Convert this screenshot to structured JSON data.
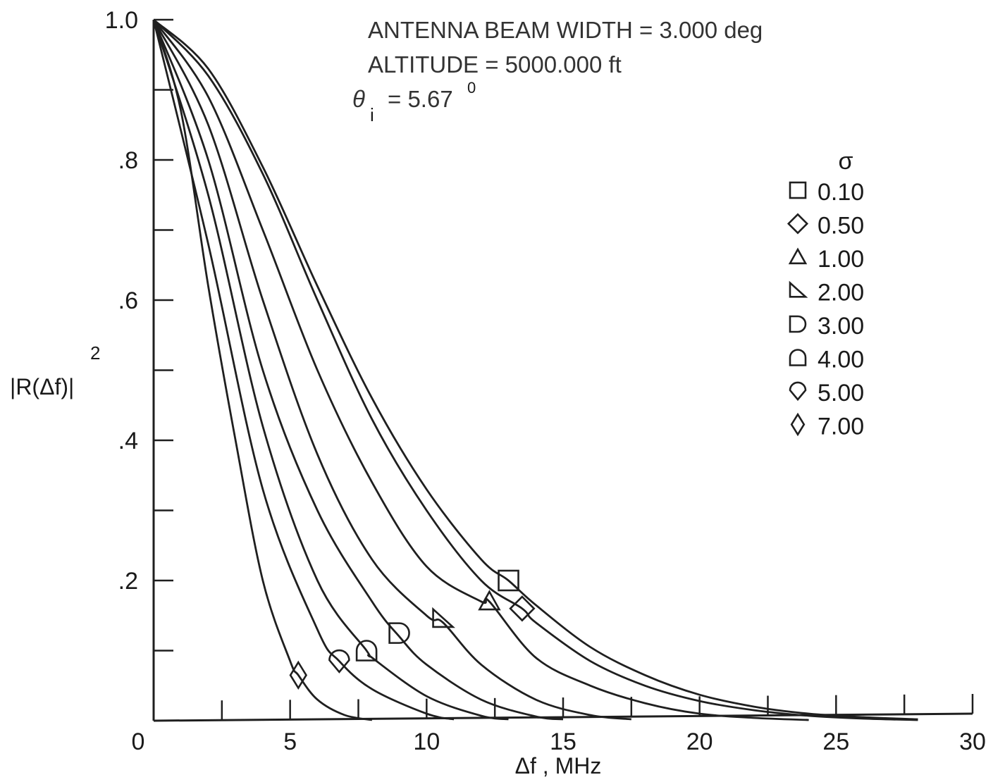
{
  "chart_data": {
    "type": "line",
    "annotations": [
      "ANTENNA BEAM WIDTH = 3.000 deg",
      "ALTITUDE = 5000.000 ft"
    ],
    "theta_label": "θ",
    "theta_subscript": "i",
    "theta_value": "= 5.67",
    "theta_superscript": "0",
    "xlabel": "Δf , MHz",
    "ylabel": "|R(Δf)|",
    "ylabel_exponent": "2",
    "xlim": [
      0,
      30
    ],
    "ylim": [
      0,
      1.0
    ],
    "x_ticks": [
      {
        "value": 0,
        "label": "0"
      },
      {
        "value": 5,
        "label": "5"
      },
      {
        "value": 10,
        "label": "10"
      },
      {
        "value": 15,
        "label": "15"
      },
      {
        "value": 20,
        "label": "20"
      },
      {
        "value": 25,
        "label": "25"
      },
      {
        "value": 30,
        "label": "30"
      }
    ],
    "y_ticks": [
      {
        "value": 0.2,
        "label": ".2"
      },
      {
        "value": 0.4,
        "label": ".4"
      },
      {
        "value": 0.6,
        "label": ".6"
      },
      {
        "value": 0.8,
        "label": ".8"
      },
      {
        "value": 1.0,
        "label": "1.0"
      }
    ],
    "legend_title": "σ",
    "legend_position": "right",
    "series": [
      {
        "name": "0.10",
        "marker": "square",
        "x": [
          0,
          2,
          4,
          6,
          8,
          10,
          12,
          13,
          14,
          16,
          18,
          20,
          22,
          24,
          26,
          28
        ],
        "y": [
          1.0,
          0.93,
          0.79,
          0.62,
          0.46,
          0.33,
          0.23,
          0.2,
          0.165,
          0.105,
          0.065,
          0.037,
          0.02,
          0.01,
          0.005,
          0.002
        ]
      },
      {
        "name": "0.50",
        "marker": "diamond",
        "x": [
          0,
          2,
          4,
          6,
          8,
          10,
          12,
          13.5,
          14,
          16,
          18,
          20,
          22,
          24,
          26,
          28
        ],
        "y": [
          1.0,
          0.92,
          0.78,
          0.6,
          0.43,
          0.3,
          0.2,
          0.16,
          0.14,
          0.085,
          0.05,
          0.028,
          0.015,
          0.007,
          0.003,
          0.001
        ]
      },
      {
        "name": "1.00",
        "marker": "triangle",
        "x": [
          0,
          2,
          4,
          6,
          8,
          10,
          12,
          12.3,
          14,
          16,
          18,
          20,
          22,
          24
        ],
        "y": [
          1.0,
          0.89,
          0.7,
          0.5,
          0.34,
          0.22,
          0.17,
          0.17,
          0.09,
          0.05,
          0.025,
          0.01,
          0.004,
          0.001
        ]
      },
      {
        "name": "2.00",
        "marker": "right-triangle",
        "x": [
          0,
          2,
          4,
          6,
          8,
          10,
          10.6,
          12,
          14,
          16,
          17.5
        ],
        "y": [
          1.0,
          0.85,
          0.6,
          0.38,
          0.23,
          0.15,
          0.14,
          0.08,
          0.03,
          0.008,
          0.002
        ]
      },
      {
        "name": "3.00",
        "marker": "d-shape",
        "x": [
          0,
          2,
          4,
          6,
          8,
          9,
          10,
          12,
          14,
          15
        ],
        "y": [
          1.0,
          0.8,
          0.5,
          0.3,
          0.17,
          0.12,
          0.08,
          0.03,
          0.006,
          0.002
        ]
      },
      {
        "name": "4.00",
        "marker": "dome",
        "x": [
          0,
          2,
          4,
          6,
          7.8,
          8,
          10,
          12,
          13
        ],
        "y": [
          1.0,
          0.75,
          0.42,
          0.2,
          0.1,
          0.09,
          0.035,
          0.007,
          0.002
        ]
      },
      {
        "name": "5.00",
        "marker": "pointed-circle",
        "x": [
          0,
          2,
          4,
          6,
          6.8,
          8,
          10,
          11
        ],
        "y": [
          1.0,
          0.68,
          0.33,
          0.13,
          0.085,
          0.045,
          0.01,
          0.002
        ]
      },
      {
        "name": "7.00",
        "marker": "tall-diamond",
        "x": [
          0,
          1,
          2,
          3,
          4,
          5,
          5.3,
          6,
          7,
          8
        ],
        "y": [
          1.0,
          0.87,
          0.62,
          0.4,
          0.2,
          0.085,
          0.065,
          0.03,
          0.008,
          0.001
        ]
      }
    ],
    "markers_on_curves": [
      {
        "series": "0.10",
        "x": 13.0,
        "y": 0.2
      },
      {
        "series": "0.50",
        "x": 13.5,
        "y": 0.16
      },
      {
        "series": "1.00",
        "x": 12.3,
        "y": 0.17
      },
      {
        "series": "2.00",
        "x": 10.6,
        "y": 0.145
      },
      {
        "series": "3.00",
        "x": 9.0,
        "y": 0.125
      },
      {
        "series": "4.00",
        "x": 7.8,
        "y": 0.1
      },
      {
        "series": "5.00",
        "x": 6.8,
        "y": 0.085
      },
      {
        "series": "7.00",
        "x": 5.3,
        "y": 0.065
      }
    ]
  }
}
